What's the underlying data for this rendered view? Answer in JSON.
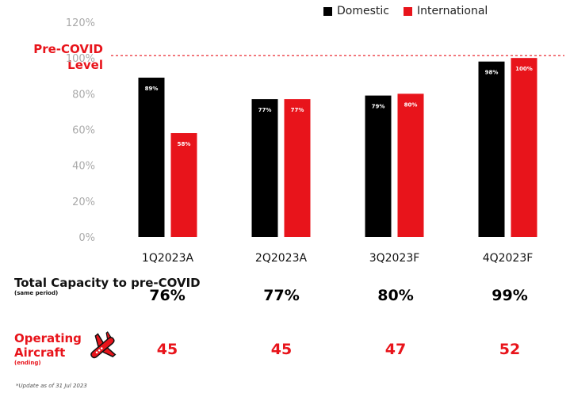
{
  "legend": {
    "domestic": "Domestic",
    "international": "International"
  },
  "colors": {
    "domestic": "#000000",
    "international": "#e8141b",
    "accent": "#e8141b"
  },
  "pre_covid_label": "Pre-COVID Level",
  "chart_data": {
    "type": "bar",
    "categories": [
      "1Q2023A",
      "2Q2023A",
      "3Q2023F",
      "4Q2023F"
    ],
    "series": [
      {
        "name": "Domestic",
        "values": [
          89,
          77,
          79,
          98
        ],
        "labels": [
          "89%",
          "77%",
          "79%",
          "98%"
        ]
      },
      {
        "name": "International",
        "values": [
          58,
          77,
          80,
          100
        ],
        "labels": [
          "58%",
          "77%",
          "80%",
          "100%"
        ]
      }
    ],
    "ylim": [
      0,
      120
    ],
    "yticks": [
      "0%",
      "20%",
      "40%",
      "60%",
      "80%",
      "100%",
      "120%"
    ],
    "reference_line": 100,
    "grid": false,
    "legend_position": "top-right"
  },
  "rows": {
    "capacity": {
      "title": "Total Capacity to pre-COVID",
      "subtitle": "(same period)",
      "values": [
        "76%",
        "77%",
        "80%",
        "99%"
      ]
    },
    "aircraft": {
      "title": "Operating Aircraft",
      "subtitle": "(ending)",
      "values": [
        "45",
        "45",
        "47",
        "52"
      ],
      "icon": "airplane-icon"
    }
  },
  "footnote": "*Update as of 31 Jul 2023"
}
